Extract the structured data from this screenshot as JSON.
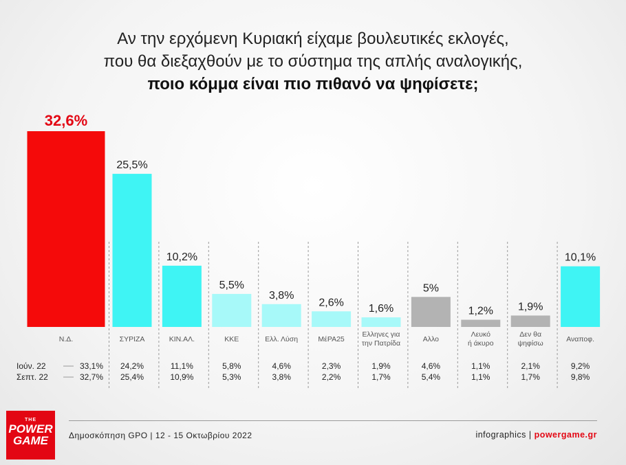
{
  "title": {
    "line1": "Αν την ερχόμενη Κυριακή είχαμε βουλευτικές εκλογές,",
    "line2": "που θα διεξαχθούν με το σύστημα της απλής αναλογικής,",
    "line3": "ποιο κόμμα είναι πιο πιθανό να ψηφίσετε;"
  },
  "chart_data": {
    "type": "bar",
    "categories": [
      "Ν.Δ.",
      "ΣΥΡΙΖΑ",
      "ΚΙΝ.ΑΛ.",
      "ΚΚΕ",
      "Ελλ. Λύση",
      "ΜέΡΑ25",
      "Ελληνες για την Πατρίδα",
      "Αλλο",
      "Λευκό ή άκυρο",
      "Δεν θα ψηφίσω",
      "Αναποφ."
    ],
    "category_lines": [
      [
        "Ν.Δ."
      ],
      [
        "ΣΥΡΙΖΑ"
      ],
      [
        "ΚΙΝ.ΑΛ."
      ],
      [
        "ΚΚΕ"
      ],
      [
        "Ελλ. Λύση"
      ],
      [
        "ΜέΡΑ25"
      ],
      [
        "Ελληνες για",
        "την Πατρίδα"
      ],
      [
        "Αλλο"
      ],
      [
        "Λευκό",
        "ή άκυρο"
      ],
      [
        "Δεν θα",
        "ψηφίσω"
      ],
      [
        "Αναποφ."
      ]
    ],
    "values": [
      32.6,
      25.5,
      10.2,
      5.5,
      3.8,
      2.6,
      1.6,
      5,
      1.2,
      1.9,
      10.1
    ],
    "value_labels": [
      "32,6%",
      "25,5%",
      "10,2%",
      "5,5%",
      "3,8%",
      "2,6%",
      "1,6%",
      "5%",
      "1,2%",
      "1,9%",
      "10,1%"
    ],
    "colors": [
      "#f50a0a",
      "#3ff4f4",
      "#3ff4f4",
      "#a7f9f9",
      "#a7f9f9",
      "#a7f9f9",
      "#a7f9f9",
      "#b3b3b3",
      "#b3b3b3",
      "#b3b3b3",
      "#3ff4f4"
    ],
    "ylim": [
      0,
      32.6
    ],
    "previous": [
      {
        "name": "Ιούν. 22",
        "values": [
          "33,1%",
          "24,2%",
          "11,1%",
          "5,8%",
          "4,6%",
          "2,3%",
          "1,9%",
          "4,6%",
          "1,1%",
          "2,1%",
          "9,2%"
        ]
      },
      {
        "name": "Σεπτ. 22",
        "values": [
          "32,7%",
          "25,4%",
          "10,9%",
          "5,3%",
          "3,8%",
          "2,2%",
          "1,7%",
          "5,4%",
          "1,1%",
          "1,7%",
          "9,8%"
        ]
      }
    ]
  },
  "footer": {
    "source": "Δημοσκόπηση GPO | 12 - 15 Οκτωβρίου 2022",
    "credit_prefix": "infographics | ",
    "credit_site": "powergame.gr"
  },
  "logo": {
    "the": "THE",
    "word1": "POWER",
    "word2": "GAME"
  }
}
